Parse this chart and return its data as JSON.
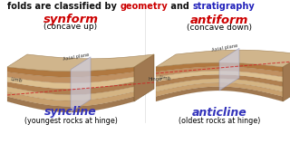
{
  "title_black1": "folds are classified by ",
  "title_red": "geometry",
  "title_black2": " and ",
  "title_blue": "stratigraphy",
  "left_title": "synform",
  "left_subtitle": "(concave up)",
  "left_bottom_title": "syncline",
  "left_bottom_subtitle": "(youngest rocks at hinge)",
  "right_title": "antiform",
  "right_subtitle": "(concave down)",
  "right_bottom_title": "anticline",
  "right_bottom_subtitle": "(oldest rocks at hinge)",
  "title_color": "#cc0000",
  "bottom_title_color": "#3333bb",
  "subtitle_color": "#000000",
  "background_color": "#ffffff",
  "layer_colors": [
    "#a07850",
    "#c8a06e",
    "#d4b483",
    "#b08050",
    "#ddc090",
    "#c09060",
    "#b07840",
    "#8b6030"
  ],
  "axial_color": "#cdd0e8",
  "hinge_color": "#cc2222",
  "top_surface_color": "#c8a878"
}
